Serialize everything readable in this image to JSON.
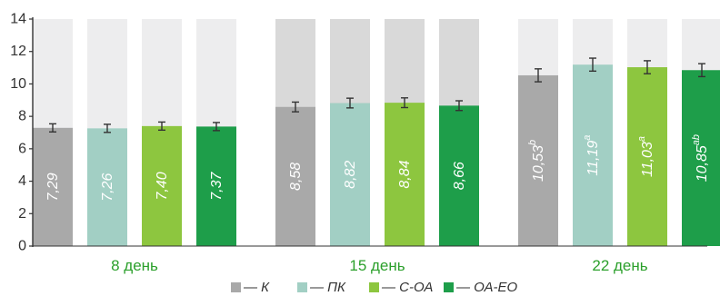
{
  "chart_data": {
    "type": "bar",
    "ylim": [
      0,
      14
    ],
    "yticks": [
      0,
      2,
      4,
      6,
      8,
      10,
      12,
      14
    ],
    "grid": false,
    "legend_placement": "bottom",
    "groups": [
      {
        "label": "8 день",
        "bars": [
          {
            "series": "К",
            "value": 7.29,
            "label": "7,29",
            "sup": "",
            "err": 0.25
          },
          {
            "series": "ПК",
            "value": 7.26,
            "label": "7,26",
            "sup": "",
            "err": 0.25
          },
          {
            "series": "С-ОА",
            "value": 7.4,
            "label": "7,40",
            "sup": "",
            "err": 0.25
          },
          {
            "series": "ОА-ЕО",
            "value": 7.37,
            "label": "7,37",
            "sup": "",
            "err": 0.25
          }
        ]
      },
      {
        "label": "15 день",
        "bars": [
          {
            "series": "К",
            "value": 8.58,
            "label": "8,58",
            "sup": "",
            "err": 0.3
          },
          {
            "series": "ПК",
            "value": 8.82,
            "label": "8,82",
            "sup": "",
            "err": 0.3
          },
          {
            "series": "С-ОА",
            "value": 8.84,
            "label": "8,84",
            "sup": "",
            "err": 0.3
          },
          {
            "series": "ОА-ЕО",
            "value": 8.66,
            "label": "8,66",
            "sup": "",
            "err": 0.3
          }
        ]
      },
      {
        "label": "22 день",
        "bars": [
          {
            "series": "К",
            "value": 10.53,
            "label": "10,53",
            "sup": "b",
            "err": 0.4
          },
          {
            "series": "ПК",
            "value": 11.19,
            "label": "11,19",
            "sup": "a",
            "err": 0.4
          },
          {
            "series": "С-ОА",
            "value": 11.03,
            "label": "11,03",
            "sup": "a",
            "err": 0.4
          },
          {
            "series": "ОА-ЕО",
            "value": 10.85,
            "label": "10,85",
            "sup": "ab",
            "err": 0.4
          }
        ]
      }
    ],
    "series": [
      {
        "name": "— К",
        "color": "#a9a9a9"
      },
      {
        "name": "— ПК",
        "color": "#a2cfc4"
      },
      {
        "name": "— С-ОА",
        "color": "#8dc63f"
      },
      {
        "name": "— ОА-ЕО",
        "color": "#1e9e4a"
      }
    ],
    "colors": {
      "background_bar": "#ededee",
      "background_bar_alt": "#d9d9d9",
      "group_label": "#2ca02c",
      "axis": "#333333",
      "error_bar": "#333333"
    }
  }
}
